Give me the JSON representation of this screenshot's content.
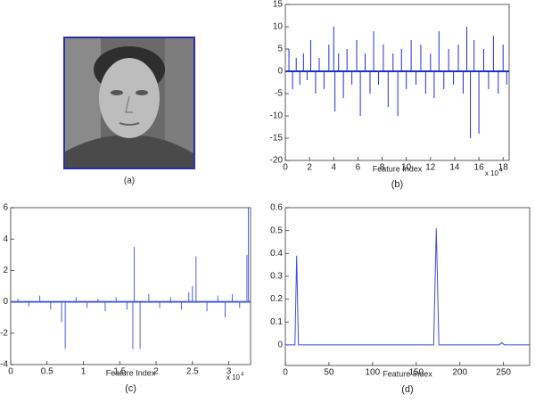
{
  "image": {
    "caption": "(a)"
  },
  "chart_data": [
    {
      "type": "stem",
      "caption": "(b)",
      "xlabel": "Feature Index",
      "x_multiplier": {
        "base": "x 10",
        "exponent": "4"
      },
      "color": "#1f2fd8",
      "x": [
        0.3,
        0.6,
        0.9,
        1.2,
        1.5,
        1.8,
        2.1,
        2.5,
        2.8,
        3.2,
        3.6,
        4.0,
        4.1,
        4.4,
        4.8,
        5.1,
        5.5,
        5.9,
        6.2,
        6.6,
        7.0,
        7.3,
        7.7,
        8.1,
        8.5,
        8.9,
        9.3,
        9.6,
        10.0,
        10.4,
        10.8,
        11.2,
        11.6,
        12.0,
        12.3,
        12.7,
        13.1,
        13.5,
        13.9,
        14.3,
        14.7,
        15.0,
        15.3,
        15.6,
        16.0,
        16.4,
        16.8,
        17.2,
        17.6,
        18.0,
        18.3
      ],
      "values": [
        5,
        -4,
        3,
        -3,
        4,
        -2,
        7,
        -5,
        3,
        -4,
        6,
        10,
        -9,
        4,
        -6,
        5,
        -3,
        7,
        -10,
        4,
        -5,
        9,
        -3,
        6,
        -8,
        4,
        -10,
        5,
        -4,
        7,
        -3,
        6,
        -5,
        4,
        -6,
        9,
        -4,
        5,
        -3,
        6,
        -5,
        10,
        -15,
        7,
        -14,
        5,
        -4,
        8,
        -5,
        6,
        -3
      ],
      "xlim": [
        0,
        18.5
      ],
      "ylim": [
        -20,
        15
      ],
      "xticks": [
        0,
        2,
        4,
        6,
        8,
        10,
        12,
        14,
        16,
        18
      ],
      "yticks": [
        -20,
        -15,
        -10,
        -5,
        0,
        5,
        10,
        15
      ]
    },
    {
      "type": "stem",
      "caption": "(c)",
      "xlabel": "Feature Index",
      "x_multiplier": {
        "base": "x 10",
        "exponent": "4"
      },
      "color": "#4a5fe0",
      "x": [
        0.1,
        0.25,
        0.4,
        0.55,
        0.7,
        0.75,
        0.9,
        1.05,
        1.2,
        1.3,
        1.45,
        1.6,
        1.68,
        1.7,
        1.78,
        1.9,
        2.05,
        2.2,
        2.35,
        2.45,
        2.5,
        2.55,
        2.7,
        2.85,
        2.95,
        3.05,
        3.15,
        3.25,
        3.27
      ],
      "values": [
        0.2,
        -0.3,
        0.4,
        -0.5,
        -1.3,
        -3,
        0.3,
        -0.4,
        0.2,
        -0.6,
        0.3,
        -0.5,
        -3,
        3.5,
        -3,
        0.5,
        -0.4,
        0.3,
        -0.5,
        0.6,
        1.0,
        2.9,
        -0.6,
        0.4,
        -1.0,
        0.5,
        -0.4,
        3.0,
        6.0
      ],
      "xlim": [
        0,
        3.3
      ],
      "ylim": [
        -4,
        6
      ],
      "xticks": [
        0,
        0.5,
        1,
        1.5,
        2,
        2.5,
        3
      ],
      "yticks": [
        -4,
        -2,
        0,
        2,
        4,
        6
      ]
    },
    {
      "type": "line",
      "caption": "(d)",
      "xlabel": "Feature Index",
      "color": "#3a4fe0",
      "x": [
        0,
        11,
        13,
        15,
        170,
        173,
        176,
        245,
        248,
        251,
        280
      ],
      "values": [
        0,
        0,
        0.39,
        0,
        0,
        0.51,
        0,
        0,
        0.01,
        0,
        0
      ],
      "xlim": [
        0,
        280
      ],
      "ylim": [
        -0.09,
        0.6
      ],
      "xticks": [
        0,
        50,
        100,
        150,
        200,
        250
      ],
      "yticks": [
        0,
        0.1,
        0.2,
        0.3,
        0.4,
        0.5,
        0.6
      ]
    }
  ]
}
